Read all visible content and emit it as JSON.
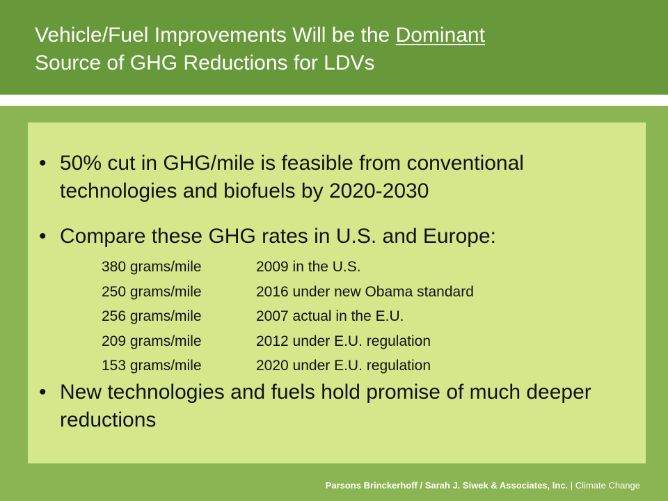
{
  "title": {
    "part1": "Vehicle/Fuel Improvements Will be the ",
    "emphasis": "Dominant",
    "part2": "Source of GHG Reductions for LDVs"
  },
  "bullets": [
    {
      "symbol": "•",
      "text": "50% cut in GHG/mile is feasible from conventional technologies and biofuels by 2020-2030"
    },
    {
      "symbol": "•",
      "text": "Compare these GHG rates in U.S. and Europe:"
    },
    {
      "symbol": "•",
      "text": "New technologies and fuels hold promise of much deeper reductions"
    }
  ],
  "rates": [
    {
      "value": "380 grams/mile",
      "description": "2009 in the U.S."
    },
    {
      "value": "250 grams/mile",
      "description": "2016 under new Obama standard"
    },
    {
      "value": "256 grams/mile",
      "description": "2007 actual in the E.U."
    },
    {
      "value": "209 grams/mile",
      "description": "2012 under E.U. regulation"
    },
    {
      "value": "153 grams/mile",
      "description": "2020 under E.U. regulation"
    }
  ],
  "footer": {
    "org": "Parsons Brinckerhoff / Sarah  J. Siwek & Associates, Inc.",
    "topic": " | Climate Change"
  }
}
